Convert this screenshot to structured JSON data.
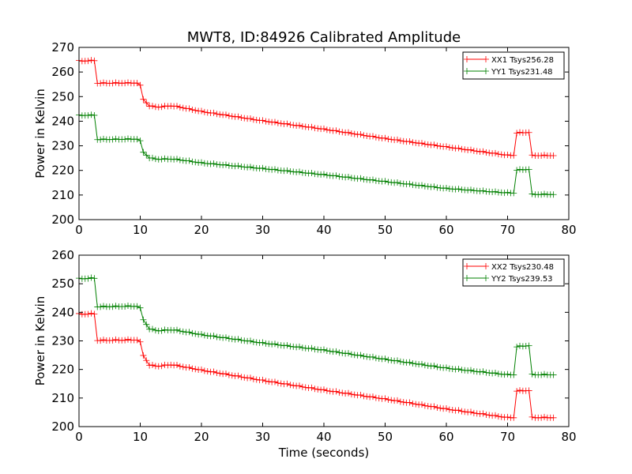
{
  "title": "MWT8, ID:84926 Calibrated Amplitude",
  "chart_data": [
    {
      "type": "line",
      "title": "MWT8, ID:84926 Calibrated Amplitude",
      "xlabel": "",
      "ylabel": "Power in Kelvin",
      "xlim": [
        0,
        80
      ],
      "ylim": [
        200,
        270
      ],
      "xticks": [
        "0",
        "10",
        "20",
        "30",
        "40",
        "50",
        "60",
        "70",
        "80"
      ],
      "yticks": [
        "200",
        "210",
        "220",
        "230",
        "240",
        "250",
        "260",
        "270"
      ],
      "grid": false,
      "legend": "top-right",
      "series": [
        {
          "name": "XX1 Tsys256.28",
          "color": "#ff0000",
          "x": [
            0,
            2.5,
            3,
            9.9,
            10.5,
            11.5,
            13,
            15,
            16,
            20,
            30,
            40,
            50,
            60,
            70,
            71,
            71.5,
            73.5,
            74,
            77.5
          ],
          "y": [
            264.5,
            264.7,
            255.5,
            255.6,
            249,
            246.2,
            245.8,
            246.3,
            246.0,
            244.0,
            240.2,
            236.8,
            233.0,
            229.6,
            226.2,
            226.2,
            235.3,
            235.5,
            226.1,
            226.1
          ]
        },
        {
          "name": "YY1 Tsys231.48",
          "color": "#008000",
          "x": [
            0,
            2.5,
            3,
            9.9,
            10.5,
            11.5,
            13,
            15,
            16,
            20,
            30,
            40,
            50,
            60,
            70,
            71,
            71.5,
            73.5,
            74,
            77.5
          ],
          "y": [
            242.4,
            242.5,
            232.6,
            232.8,
            227.5,
            225.1,
            224.6,
            224.7,
            224.5,
            223.1,
            220.8,
            218.3,
            215.5,
            212.7,
            210.9,
            210.9,
            220.2,
            220.5,
            210.3,
            210.3
          ]
        }
      ]
    },
    {
      "type": "line",
      "title": "",
      "xlabel": "Time (seconds)",
      "ylabel": "Power in Kelvin",
      "xlim": [
        0,
        80
      ],
      "ylim": [
        200,
        260
      ],
      "xticks": [
        "0",
        "10",
        "20",
        "30",
        "40",
        "50",
        "60",
        "70",
        "80"
      ],
      "yticks": [
        "200",
        "210",
        "220",
        "230",
        "240",
        "250",
        "260"
      ],
      "grid": false,
      "legend": "top-right",
      "series": [
        {
          "name": "XX2 Tsys230.48",
          "color": "#ff0000",
          "x": [
            0,
            2.5,
            3,
            9.9,
            10.5,
            11.5,
            13,
            15,
            16,
            20,
            30,
            40,
            50,
            60,
            70,
            71,
            71.5,
            73.5,
            74,
            77.5
          ],
          "y": [
            239.4,
            239.5,
            230.2,
            230.4,
            225.0,
            221.5,
            221.2,
            221.7,
            221.4,
            219.8,
            216.2,
            212.8,
            209.7,
            206.2,
            203.2,
            203.2,
            212.5,
            212.7,
            203.2,
            203.2
          ]
        },
        {
          "name": "YY2 Tsys239.53",
          "color": "#008000",
          "x": [
            0,
            2.5,
            3,
            9.9,
            10.5,
            11.5,
            13,
            15,
            16,
            20,
            30,
            40,
            50,
            60,
            70,
            71,
            71.5,
            73.5,
            74,
            77.5
          ],
          "y": [
            251.8,
            252.0,
            242.0,
            242.2,
            237.5,
            234.2,
            233.6,
            233.9,
            233.7,
            232.2,
            229.3,
            226.8,
            223.6,
            220.5,
            218.2,
            218.2,
            228.0,
            228.4,
            218.2,
            218.2
          ]
        }
      ]
    }
  ]
}
